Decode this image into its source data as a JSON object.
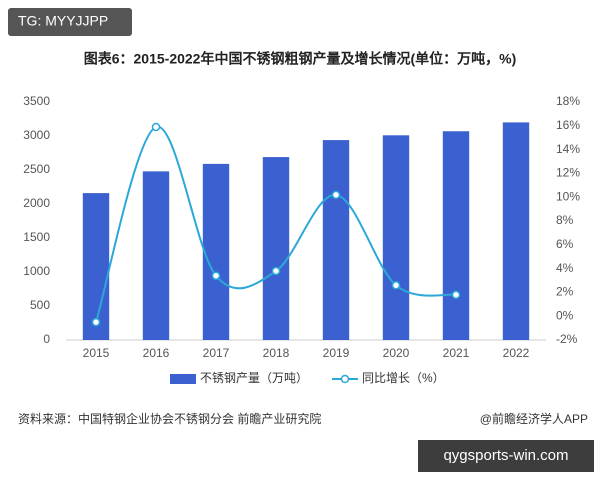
{
  "tag": "TG: MYYJJPP",
  "chart_data": {
    "type": "bar-line",
    "title": "图表6：2015-2022年中国不锈钢粗钢产量及增长情况(单位：万吨，%)",
    "categories": [
      "2015",
      "2016",
      "2017",
      "2018",
      "2019",
      "2020",
      "2021",
      "2022"
    ],
    "series": [
      {
        "name": "不锈钢产量（万吨）",
        "color": "#3a61cf",
        "type": "bar",
        "values": [
          2160,
          2480,
          2590,
          2690,
          2940,
          3010,
          3070,
          3200
        ]
      },
      {
        "name": "同比增长（%）",
        "color": "#2ba8d8",
        "type": "line",
        "axis": "y2",
        "values": [
          -0.5,
          15.9,
          3.4,
          3.8,
          10.2,
          2.6,
          1.8,
          null
        ]
      }
    ],
    "ylim": [
      0,
      3500
    ],
    "yticks": [
      0,
      500,
      1000,
      1500,
      2000,
      2500,
      3000,
      3500
    ],
    "y2lim": [
      -2,
      18
    ],
    "y2ticks": [
      {
        "value": -2,
        "label": "-2%"
      },
      {
        "value": 0,
        "label": "0%"
      },
      {
        "value": 2,
        "label": "2%"
      },
      {
        "value": 4,
        "label": "4%"
      },
      {
        "value": 6,
        "label": "6%"
      },
      {
        "value": 8,
        "label": "8%"
      },
      {
        "value": 10,
        "label": "10%"
      },
      {
        "value": 12,
        "label": "12%"
      },
      {
        "value": 14,
        "label": "14%"
      },
      {
        "value": 16,
        "label": "16%"
      },
      {
        "value": 18,
        "label": "18%"
      }
    ],
    "grid": false
  },
  "source": "资料来源：中国特钢企业协会不锈钢分会 前瞻产业研究院",
  "credit": "@前瞻经济学人APP",
  "footer": "qygsports-win.com"
}
